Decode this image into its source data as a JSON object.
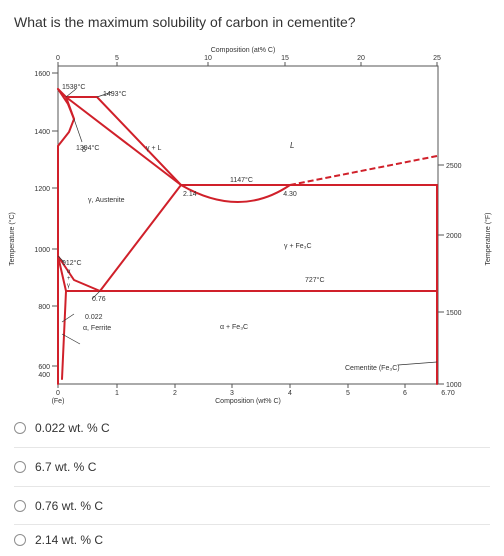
{
  "question": "What is the maximum solubility of carbon in cementite?",
  "diagram": {
    "top_axis_title": "Composition (at% C)",
    "top_ticks": [
      "0",
      "5",
      "10",
      "15",
      "20",
      "25"
    ],
    "bottom_axis_title": "Composition (wt% C)",
    "bottom_ticks": [
      "0",
      "1",
      "2",
      "3",
      "4",
      "5",
      "6",
      "6.70"
    ],
    "bottom_sublabel": "(Fe)",
    "left_axis_title": "Temperature (°C)",
    "left_ticks": [
      "1600",
      "1400",
      "1200",
      "1000",
      "800",
      "600",
      "400"
    ],
    "right_axis_title": "Temperature (°F)",
    "right_ticks": [
      "2500",
      "2000",
      "1500",
      "1000"
    ],
    "labels": {
      "t1538": "1538°C",
      "t1493": "1493°C",
      "t1394": "1394°C",
      "t1147": "1147°C",
      "t912": "912°C",
      "t727": "727°C",
      "delta": "δ",
      "L": "L",
      "gamma_L": "γ + L",
      "austenite": "γ, Austenite",
      "gamma_fe3c": "γ + Fe₃C",
      "alpha_fe3c": "α + Fe₃C",
      "ferrite": "α, Ferrite",
      "cementite": "Cementite (Fe₃C)",
      "c214": "2.14",
      "c430": "4.30",
      "c076": "0.76",
      "c0022": "0.022",
      "alpha_small": "α",
      "plus_small": "+",
      "gamma_small": "γ"
    },
    "line_color": "#d0202a"
  },
  "options": [
    "0.022 wt. % C",
    "6.7 wt. % C",
    "0.76 wt. % C",
    "2.14 wt. % C"
  ]
}
